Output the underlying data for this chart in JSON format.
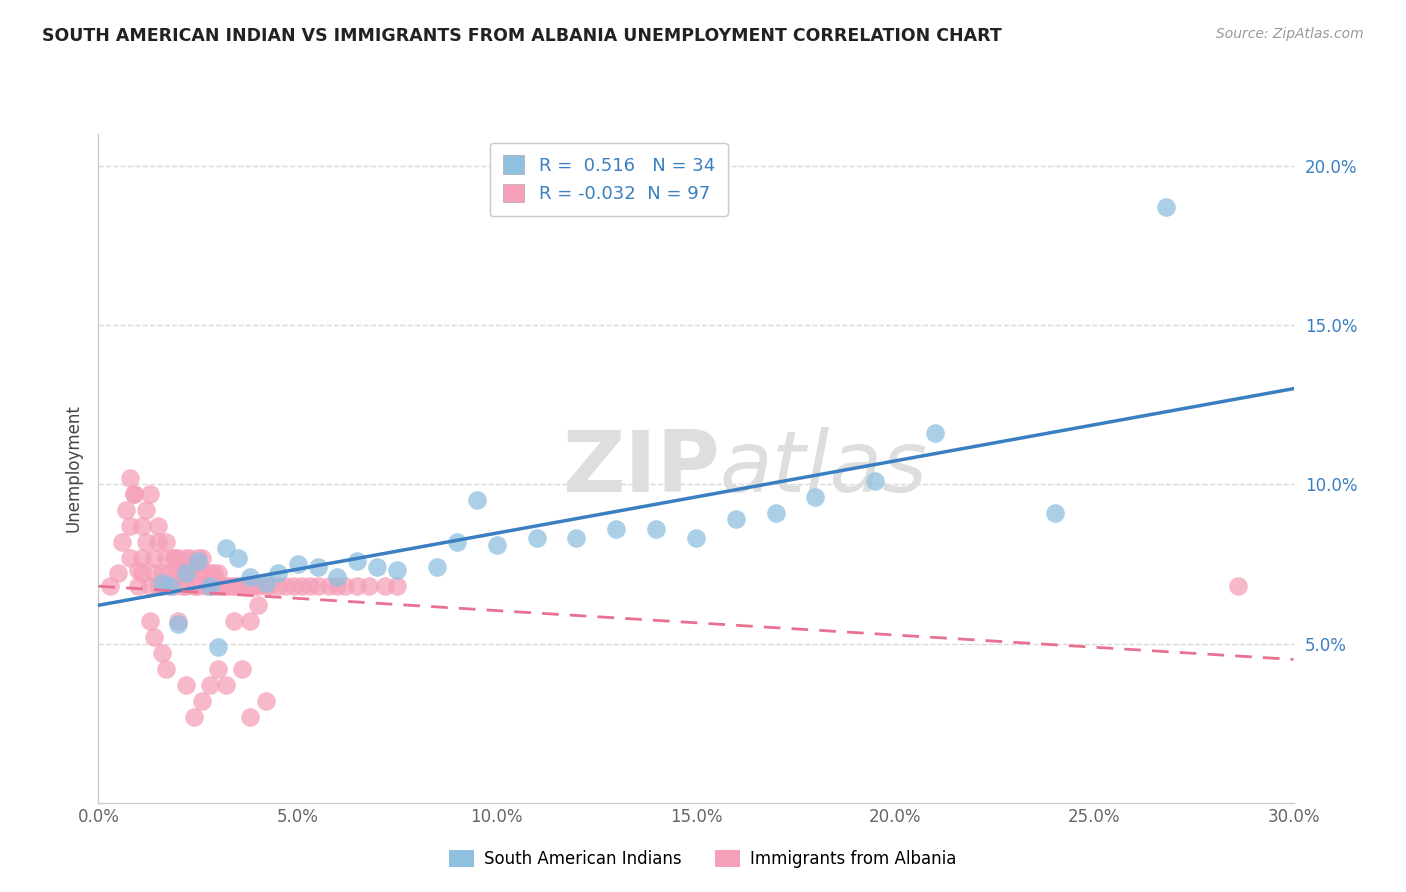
{
  "title": "SOUTH AMERICAN INDIAN VS IMMIGRANTS FROM ALBANIA UNEMPLOYMENT CORRELATION CHART",
  "source": "Source: ZipAtlas.com",
  "ylabel": "Unemployment",
  "xlim": [
    0.0,
    0.3
  ],
  "ylim": [
    0.0,
    0.21
  ],
  "xticks": [
    0.0,
    0.05,
    0.1,
    0.15,
    0.2,
    0.25,
    0.3
  ],
  "yticks": [
    0.05,
    0.1,
    0.15,
    0.2
  ],
  "ytick_labels_right": [
    "5.0%",
    "10.0%",
    "15.0%",
    "20.0%"
  ],
  "xtick_labels": [
    "0.0%",
    "5.0%",
    "10.0%",
    "15.0%",
    "20.0%",
    "25.0%",
    "30.0%"
  ],
  "blue_R": " 0.516",
  "blue_N": "34",
  "pink_R": "-0.032",
  "pink_N": "97",
  "blue_color": "#8fc0e0",
  "pink_color": "#f5a0b8",
  "blue_line_color": "#3a7fc1",
  "pink_line_color": "#e87090",
  "legend_label_blue": "South American Indians",
  "legend_label_pink": "Immigrants from Albania",
  "watermark_zip": "ZIP",
  "watermark_atlas": "atlas",
  "background_color": "#ffffff",
  "grid_color": "#d8d8d8",
  "blue_scatter_x": [
    0.018,
    0.022,
    0.025,
    0.028,
    0.032,
    0.035,
    0.038,
    0.042,
    0.045,
    0.05,
    0.055,
    0.06,
    0.065,
    0.07,
    0.075,
    0.085,
    0.09,
    0.095,
    0.1,
    0.11,
    0.12,
    0.13,
    0.14,
    0.15,
    0.16,
    0.17,
    0.18,
    0.195,
    0.21,
    0.24,
    0.016,
    0.02,
    0.03,
    0.268
  ],
  "blue_scatter_y": [
    0.068,
    0.072,
    0.076,
    0.068,
    0.08,
    0.077,
    0.071,
    0.069,
    0.072,
    0.075,
    0.074,
    0.071,
    0.076,
    0.074,
    0.073,
    0.074,
    0.082,
    0.095,
    0.081,
    0.083,
    0.083,
    0.086,
    0.086,
    0.083,
    0.089,
    0.091,
    0.096,
    0.101,
    0.116,
    0.091,
    0.069,
    0.056,
    0.049,
    0.187
  ],
  "pink_scatter_x": [
    0.003,
    0.005,
    0.006,
    0.007,
    0.008,
    0.008,
    0.009,
    0.01,
    0.01,
    0.011,
    0.011,
    0.012,
    0.012,
    0.013,
    0.013,
    0.014,
    0.014,
    0.015,
    0.015,
    0.015,
    0.016,
    0.016,
    0.017,
    0.017,
    0.018,
    0.018,
    0.019,
    0.019,
    0.02,
    0.02,
    0.021,
    0.021,
    0.022,
    0.022,
    0.023,
    0.023,
    0.024,
    0.024,
    0.025,
    0.025,
    0.026,
    0.026,
    0.027,
    0.027,
    0.028,
    0.028,
    0.029,
    0.029,
    0.03,
    0.03,
    0.031,
    0.032,
    0.033,
    0.034,
    0.035,
    0.036,
    0.037,
    0.038,
    0.039,
    0.04,
    0.042,
    0.043,
    0.045,
    0.047,
    0.049,
    0.051,
    0.053,
    0.055,
    0.058,
    0.06,
    0.062,
    0.065,
    0.068,
    0.072,
    0.075,
    0.008,
    0.009,
    0.011,
    0.013,
    0.014,
    0.016,
    0.017,
    0.019,
    0.02,
    0.022,
    0.024,
    0.026,
    0.028,
    0.03,
    0.032,
    0.034,
    0.036,
    0.038,
    0.04,
    0.042,
    0.286,
    0.038
  ],
  "pink_scatter_y": [
    0.068,
    0.072,
    0.082,
    0.092,
    0.077,
    0.087,
    0.097,
    0.073,
    0.068,
    0.072,
    0.077,
    0.082,
    0.092,
    0.097,
    0.068,
    0.072,
    0.077,
    0.068,
    0.082,
    0.087,
    0.068,
    0.072,
    0.077,
    0.082,
    0.068,
    0.072,
    0.077,
    0.068,
    0.072,
    0.077,
    0.068,
    0.072,
    0.077,
    0.068,
    0.072,
    0.077,
    0.068,
    0.072,
    0.077,
    0.068,
    0.072,
    0.077,
    0.068,
    0.072,
    0.068,
    0.072,
    0.068,
    0.072,
    0.068,
    0.072,
    0.068,
    0.068,
    0.068,
    0.068,
    0.068,
    0.068,
    0.068,
    0.068,
    0.068,
    0.068,
    0.068,
    0.068,
    0.068,
    0.068,
    0.068,
    0.068,
    0.068,
    0.068,
    0.068,
    0.068,
    0.068,
    0.068,
    0.068,
    0.068,
    0.068,
    0.102,
    0.097,
    0.087,
    0.057,
    0.052,
    0.047,
    0.042,
    0.077,
    0.057,
    0.037,
    0.027,
    0.032,
    0.037,
    0.042,
    0.037,
    0.057,
    0.042,
    0.027,
    0.062,
    0.032,
    0.068,
    0.057
  ],
  "blue_trend_x": [
    0.0,
    0.3
  ],
  "blue_trend_y": [
    0.062,
    0.13
  ],
  "pink_trend_x": [
    0.0,
    0.3
  ],
  "pink_trend_y": [
    0.068,
    0.045
  ]
}
